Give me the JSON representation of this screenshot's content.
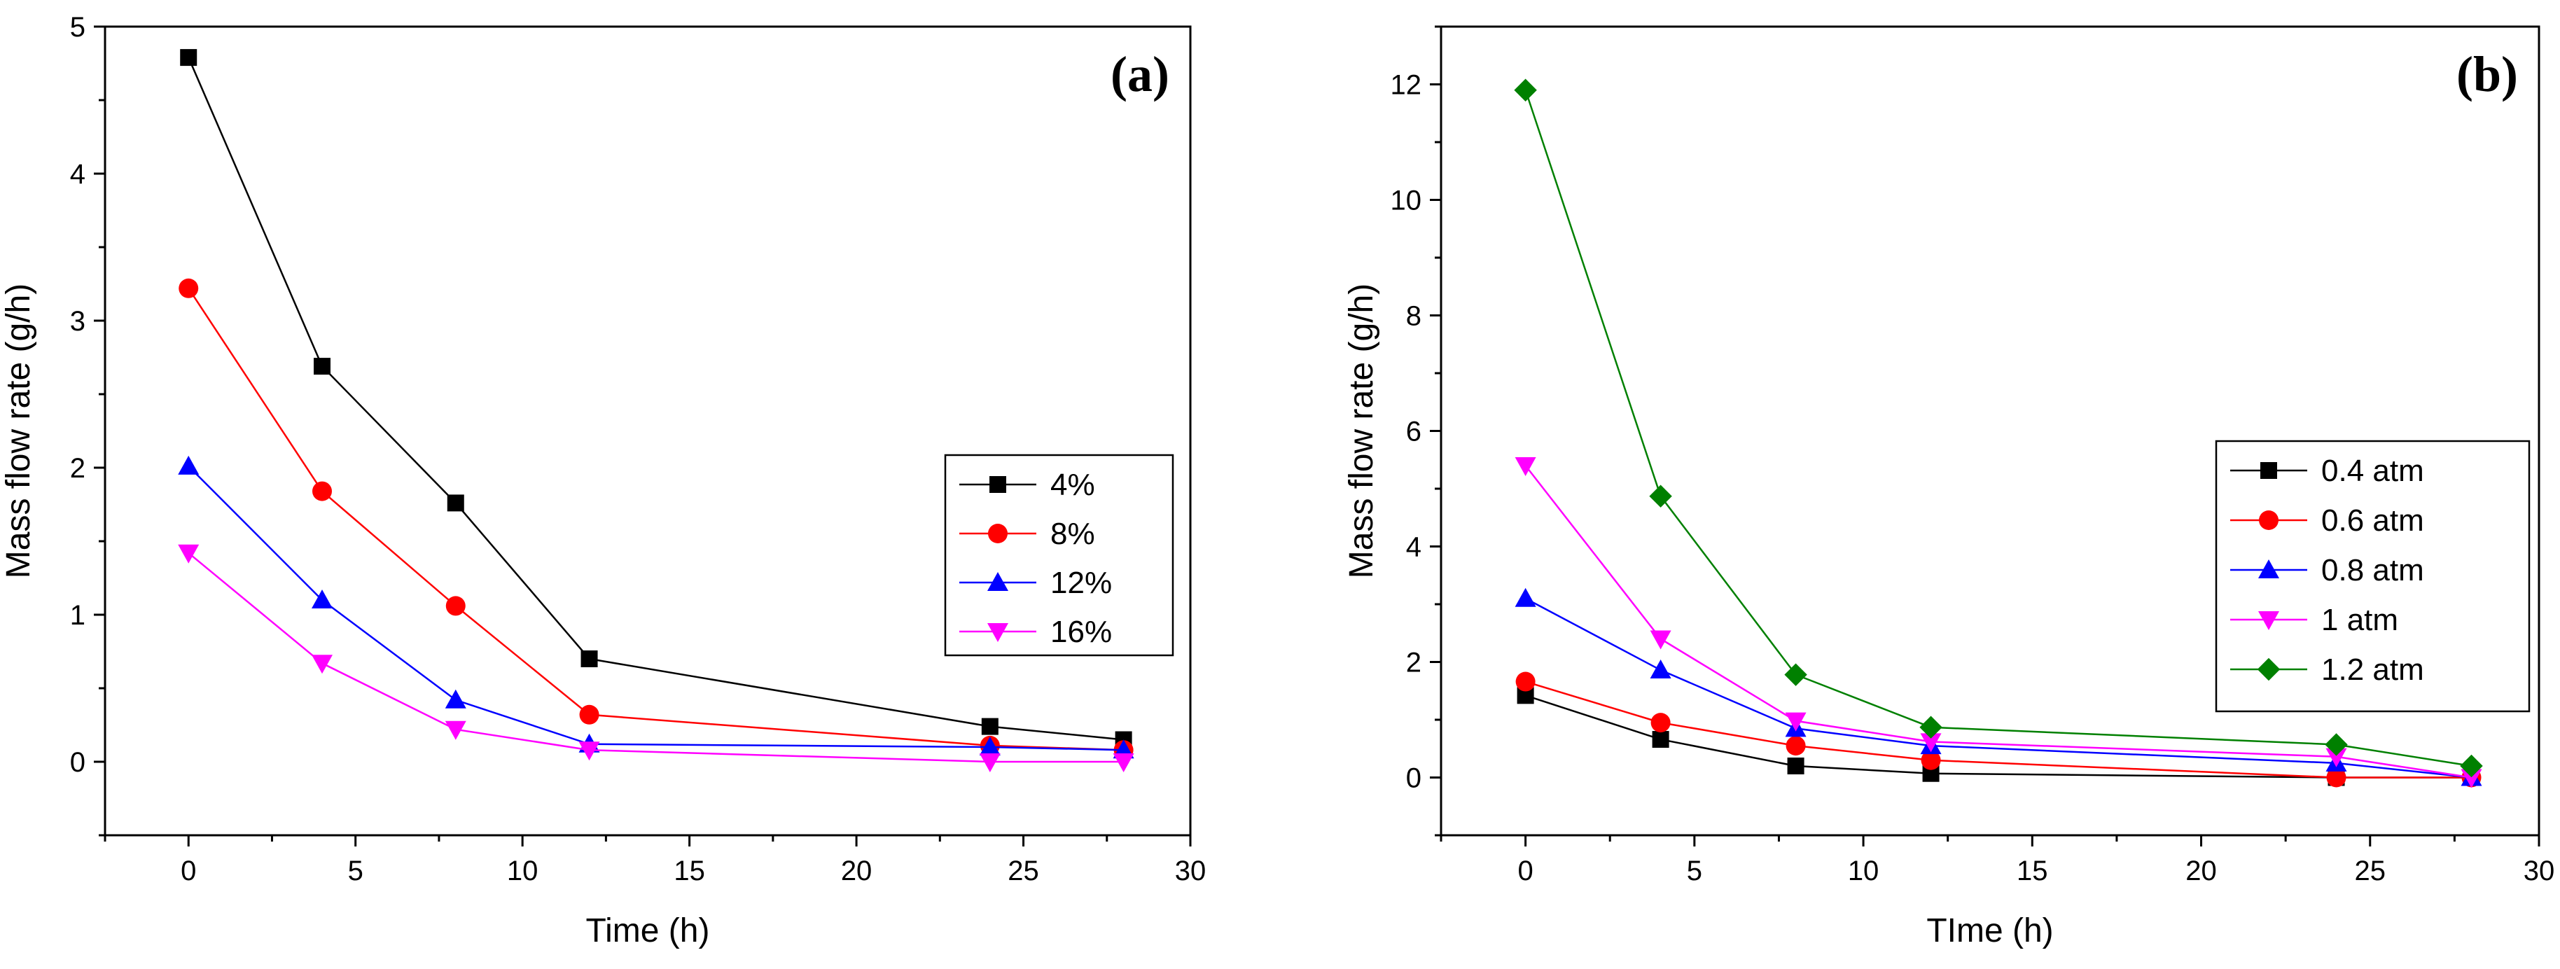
{
  "chart_data": [
    {
      "type": "line",
      "panel_label": "(a)",
      "xlabel": "Time (h)",
      "ylabel": "Mass flow rate (g/h)",
      "xlim": [
        -2.5,
        30
      ],
      "ylim": [
        -0.5,
        5
      ],
      "xticks": [
        0,
        5,
        10,
        15,
        20,
        25,
        30
      ],
      "yticks": [
        0,
        1,
        2,
        3,
        4,
        5
      ],
      "legend_position": "center-right",
      "grid": false,
      "x": [
        0,
        4,
        8,
        12,
        24,
        28
      ],
      "series": [
        {
          "name": "4%",
          "color": "#000000",
          "marker": "square",
          "values": [
            4.79,
            2.69,
            1.76,
            0.7,
            0.24,
            0.15
          ]
        },
        {
          "name": "8%",
          "color": "#ff0000",
          "marker": "circle",
          "values": [
            3.22,
            1.84,
            1.06,
            0.32,
            0.11,
            0.08
          ]
        },
        {
          "name": "12%",
          "color": "#0000ff",
          "marker": "triangle-up",
          "values": [
            2.01,
            1.1,
            0.42,
            0.12,
            0.1,
            0.08
          ]
        },
        {
          "name": "16%",
          "color": "#ff00ff",
          "marker": "triangle-down",
          "values": [
            1.42,
            0.67,
            0.22,
            0.08,
            0.0,
            0.0
          ]
        }
      ]
    },
    {
      "type": "line",
      "panel_label": "(b)",
      "xlabel": "TIme (h)",
      "ylabel": "Mass flow rate (g/h)",
      "xlim": [
        -2.5,
        30
      ],
      "ylim": [
        -1,
        13
      ],
      "xticks": [
        0,
        5,
        10,
        15,
        20,
        25,
        30
      ],
      "yticks": [
        0,
        2,
        4,
        6,
        8,
        10,
        12
      ],
      "legend_position": "lower-right",
      "grid": false,
      "x": [
        0,
        4,
        8,
        12,
        24,
        28
      ],
      "series": [
        {
          "name": "0.4 atm",
          "color": "#000000",
          "marker": "square",
          "values": [
            1.42,
            0.66,
            0.2,
            0.07,
            0.0,
            0.0
          ]
        },
        {
          "name": "0.6 atm",
          "color": "#ff0000",
          "marker": "circle",
          "values": [
            1.66,
            0.95,
            0.55,
            0.3,
            0.0,
            0.0
          ]
        },
        {
          "name": "0.8 atm",
          "color": "#0000ff",
          "marker": "triangle-up",
          "values": [
            3.1,
            1.86,
            0.85,
            0.55,
            0.25,
            0.0
          ]
        },
        {
          "name": "1 atm",
          "color": "#ff00ff",
          "marker": "triangle-down",
          "values": [
            5.4,
            2.4,
            0.98,
            0.62,
            0.36,
            0.0
          ]
        },
        {
          "name": "1.2 atm",
          "color": "#008000",
          "marker": "diamond",
          "values": [
            11.9,
            4.87,
            1.78,
            0.87,
            0.57,
            0.2
          ]
        }
      ]
    }
  ]
}
